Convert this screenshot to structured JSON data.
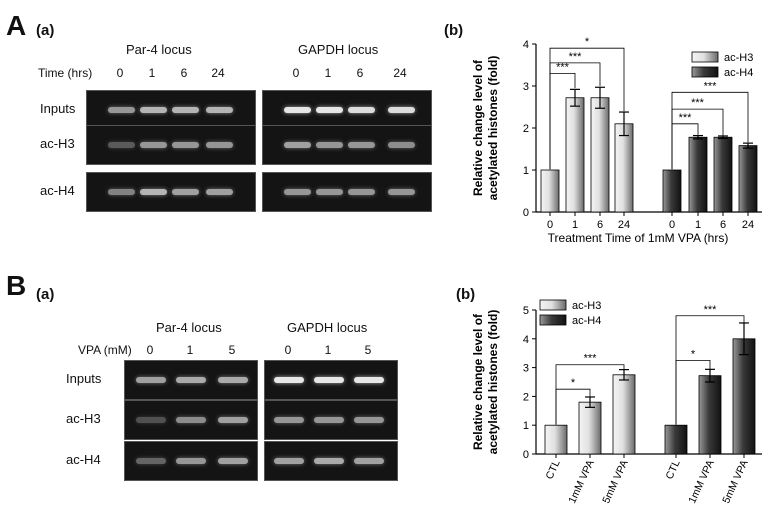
{
  "panelA": {
    "letter": "A",
    "sub_a": "(a)",
    "sub_b": "(b)",
    "gel": {
      "time_label": "Time (hrs)",
      "locus1": "Par-4 locus",
      "locus2": "GAPDH locus",
      "lanes": [
        "0",
        "1",
        "6",
        "24"
      ],
      "rows": [
        "Inputs",
        "ac-H3",
        "ac-H4"
      ]
    }
  },
  "panelB": {
    "letter": "B",
    "sub_a": "(a)",
    "sub_b": "(b)",
    "gel": {
      "vpa_label": "VPA (mM)",
      "locus1": "Par-4 locus",
      "locus2": "GAPDH locus",
      "lanes": [
        "0",
        "1",
        "5"
      ],
      "rows": [
        "Inputs",
        "ac-H3",
        "ac-H4"
      ]
    }
  },
  "chart_data": [
    {
      "type": "bar",
      "ylabel_line1": "Relative change level of",
      "ylabel_line2": "acetylated histones (fold)",
      "xlabel": "Treatment Time of 1mM VPA (hrs)",
      "ylim": [
        0,
        4
      ],
      "yticks": [
        "0",
        "1",
        "2",
        "3",
        "4"
      ],
      "legend": [
        "ac-H3",
        "ac-H4"
      ],
      "legend_position": "top-right",
      "groups": [
        {
          "series": "ac-H3",
          "categories": [
            "0",
            "1",
            "6",
            "24"
          ],
          "values": [
            1.0,
            2.72,
            2.72,
            2.1
          ],
          "errors": [
            0,
            0.2,
            0.25,
            0.28
          ]
        },
        {
          "series": "ac-H4",
          "categories": [
            "0",
            "1",
            "6",
            "24"
          ],
          "values": [
            1.0,
            1.78,
            1.78,
            1.58
          ],
          "errors": [
            0,
            0.04,
            0.03,
            0.06
          ]
        }
      ],
      "significance": [
        "***",
        "***",
        "*",
        "***",
        "***",
        "***"
      ]
    },
    {
      "type": "bar",
      "ylabel_line1": "Relative change level of",
      "ylabel_line2": "acetylated histones (fold)",
      "ylim": [
        0,
        5
      ],
      "yticks": [
        "0",
        "1",
        "2",
        "3",
        "4",
        "5"
      ],
      "legend": [
        "ac-H3",
        "ac-H4"
      ],
      "legend_position": "top-left",
      "groups": [
        {
          "series": "ac-H3",
          "categories": [
            "CTL",
            "1mM VPA",
            "5mM VPA"
          ],
          "values": [
            1.0,
            1.8,
            2.75
          ],
          "errors": [
            0,
            0.18,
            0.18
          ]
        },
        {
          "series": "ac-H4",
          "categories": [
            "CTL",
            "1mM VPA",
            "5mM VPA"
          ],
          "values": [
            1.0,
            2.72,
            4.0
          ],
          "errors": [
            0,
            0.22,
            0.55
          ]
        }
      ],
      "significance": [
        "*",
        "***",
        "*",
        "***"
      ]
    }
  ]
}
